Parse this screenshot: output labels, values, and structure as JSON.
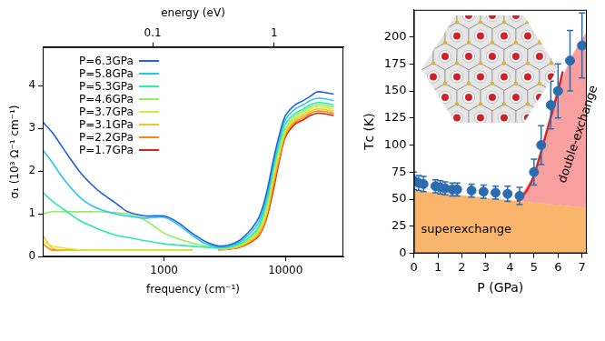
{
  "chart_data": [
    {
      "type": "line",
      "log": "x",
      "xlabel": "frequency (cm⁻¹)",
      "x2label": "energy (eV)",
      "ylabel": "σ₁ (10³ Ω⁻¹ cm⁻¹)",
      "xlim": [
        100,
        30000
      ],
      "xticks": [
        1000,
        10000
      ],
      "x2lim": [
        0.0124,
        3.72
      ],
      "x2ticks": [
        0.1,
        1
      ],
      "ylim": [
        0,
        4.9
      ],
      "yticks": [
        0,
        1,
        2,
        3,
        4
      ],
      "grid": false,
      "legend": "top-left",
      "x": [
        100,
        120,
        150,
        200,
        250,
        300,
        400,
        500,
        700,
        1000,
        1300,
        1700,
        2200,
        2800,
        3500,
        4500,
        6000,
        7000,
        8000,
        9000,
        10000,
        12000,
        14000,
        16000,
        18000,
        20000,
        25000
      ],
      "series": [
        {
          "name": "P=6.3GPa",
          "color": "#1f5fe0",
          "values": [
            3.15,
            2.9,
            2.5,
            2.0,
            1.7,
            1.5,
            1.25,
            1.05,
            0.95,
            0.95,
            0.8,
            0.55,
            0.35,
            0.25,
            0.28,
            0.45,
            0.9,
            1.5,
            2.3,
            2.9,
            3.3,
            3.55,
            3.65,
            3.75,
            3.85,
            3.85,
            3.8
          ]
        },
        {
          "name": "P=5.8GPa",
          "color": "#29c6f0",
          "values": [
            2.5,
            2.2,
            1.8,
            1.4,
            1.2,
            1.1,
            1.0,
            0.95,
            0.9,
            0.92,
            0.75,
            0.5,
            0.3,
            0.22,
            0.25,
            0.4,
            0.8,
            1.4,
            2.2,
            2.8,
            3.2,
            3.45,
            3.55,
            3.65,
            3.7,
            3.7,
            3.65
          ]
        },
        {
          "name": "P=5.3GPa",
          "color": "#2ee8b0",
          "values": [
            1.5,
            1.3,
            1.1,
            0.85,
            0.72,
            0.62,
            0.5,
            0.45,
            0.37,
            0.3,
            0.27,
            0.24,
            0.22,
            0.2,
            0.23,
            0.35,
            0.7,
            1.3,
            2.1,
            2.7,
            3.1,
            3.35,
            3.45,
            3.55,
            3.6,
            3.6,
            3.55
          ]
        },
        {
          "name": "P=4.6GPa",
          "color": "#8ff060",
          "values": [
            1.0,
            1.05,
            1.05,
            1.05,
            1.05,
            1.05,
            1.03,
            1.0,
            0.85,
            0.55,
            0.42,
            0.32,
            0.25,
            0.2,
            0.22,
            0.32,
            0.65,
            1.2,
            2.0,
            2.6,
            3.0,
            3.3,
            3.4,
            3.5,
            3.55,
            3.55,
            3.5
          ]
        },
        {
          "name": "P=3.7GPa",
          "color": "#d8ec3a",
          "values": [
            0.35,
            0.25,
            0.2,
            0.16,
            0.15,
            0.15,
            0.15,
            0.15,
            0.15,
            0.15,
            0.15,
            0.15,
            null,
            0.18,
            0.2,
            0.3,
            0.6,
            1.1,
            1.9,
            2.5,
            2.95,
            3.25,
            3.35,
            3.45,
            3.5,
            3.5,
            3.45
          ]
        },
        {
          "name": "P=3.1GPa",
          "color": "#f5c020",
          "values": [
            0.5,
            0.2,
            0.15,
            0.15,
            0.15,
            0.15,
            0.15,
            0.15,
            0.15,
            0.15,
            0.15,
            0.15,
            null,
            0.17,
            0.19,
            0.28,
            0.55,
            1.0,
            1.8,
            2.45,
            2.9,
            3.2,
            3.3,
            3.4,
            3.45,
            3.45,
            3.4
          ]
        },
        {
          "name": "P=2.2GPa",
          "color": "#f58a10",
          "values": [
            0.3,
            0.15,
            0.15,
            0.15,
            0.15,
            0.15,
            0.15,
            0.15,
            0.15,
            0.15,
            0.15,
            0.15,
            null,
            0.16,
            0.18,
            0.26,
            0.5,
            0.95,
            1.7,
            2.35,
            2.85,
            3.15,
            3.25,
            3.35,
            3.4,
            3.4,
            3.35
          ]
        },
        {
          "name": "P=1.7GPa",
          "color": "#e02010",
          "values": [
            null,
            0.15,
            0.15,
            0.15,
            0.15,
            0.15,
            0.15,
            0.15,
            0.15,
            0.15,
            0.15,
            0.15,
            null,
            0.16,
            0.18,
            0.25,
            0.48,
            0.9,
            1.6,
            2.3,
            2.8,
            3.1,
            3.2,
            3.3,
            3.35,
            3.35,
            3.3
          ]
        }
      ]
    },
    {
      "type": "scatter",
      "xlabel": "P (GPa)",
      "ylabel": "Tᴄ (K)",
      "xlim": [
        0,
        7.2
      ],
      "xticks": [
        0,
        1,
        2,
        3,
        4,
        5,
        6,
        7
      ],
      "ylim": [
        0,
        225
      ],
      "yticks": [
        0,
        25,
        50,
        75,
        100,
        125,
        150,
        175,
        200
      ],
      "grid": false,
      "color": "#2b6cb0",
      "marker": "circle",
      "x": [
        0,
        0.2,
        0.4,
        0.9,
        1.1,
        1.3,
        1.6,
        1.8,
        2.4,
        2.9,
        3.4,
        3.9,
        4.4,
        5.0,
        5.3,
        5.7,
        6.0,
        6.5,
        7.0
      ],
      "values": [
        67,
        65,
        64,
        62,
        61,
        60,
        59,
        59,
        58,
        57,
        56,
        55,
        53,
        75,
        100,
        137,
        150,
        178,
        192
      ],
      "errors": [
        8,
        7,
        7,
        6,
        6,
        6,
        6,
        6,
        6,
        6,
        6,
        7,
        8,
        12,
        18,
        22,
        25,
        28,
        30
      ],
      "fit": {
        "color": "#d62728",
        "x": [
          4.3,
          4.7,
          5.0,
          5.5,
          6.0,
          6.2
        ],
        "values": [
          48,
          58,
          72,
          110,
          150,
          168
        ]
      },
      "regions": [
        {
          "label": "superexchange",
          "color": "#f9b56c",
          "x": [
            0,
            7.2
          ],
          "lower": [
            0,
            0
          ],
          "upper": [
            58,
            42
          ],
          "text_x": 0.3,
          "text_y": 22
        },
        {
          "label": "double-exchange",
          "color": "#f8a0a0",
          "x": [
            4.3,
            5.0,
            5.5,
            6.0,
            6.5,
            7.2
          ],
          "lower": [
            48.4,
            46.9,
            45.8,
            44.7,
            43.6,
            42
          ],
          "upper": [
            48.4,
            72,
            110,
            150,
            180,
            205
          ],
          "text_x": 6.85,
          "text_y": 110
        }
      ]
    }
  ]
}
